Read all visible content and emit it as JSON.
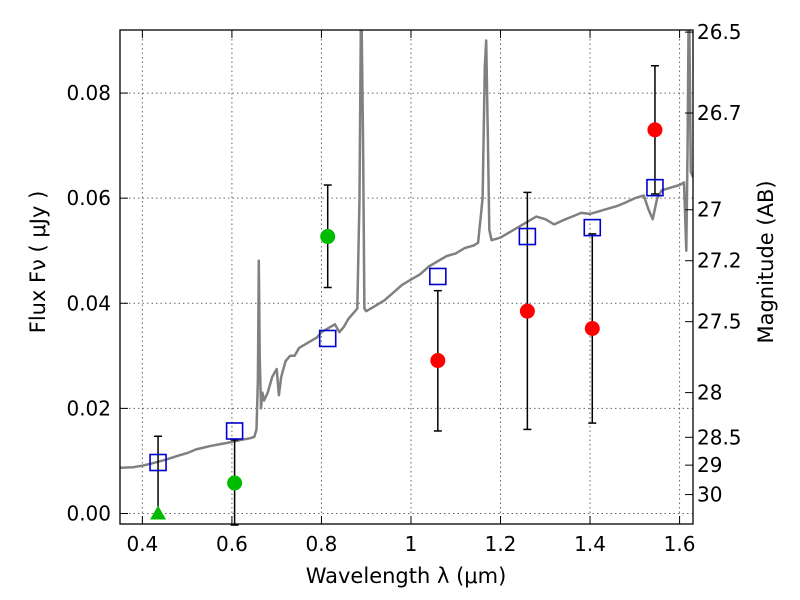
{
  "chart_data": {
    "type": "scatter",
    "xlabel": "Wavelength  λ (μm)",
    "ylabel_left": "Flux  Fν  ( μJy )",
    "ylabel_right": "Magnitude (AB)",
    "xlim": [
      0.35,
      1.63
    ],
    "ylim": [
      -0.002,
      0.092
    ],
    "grid": true,
    "x_ticks": [
      0.4,
      0.6,
      0.8,
      1.0,
      1.2,
      1.4,
      1.6
    ],
    "x_tick_labels": [
      "0.4",
      "0.6",
      "0.8",
      "1",
      "1.2",
      "1.4",
      "1.6"
    ],
    "y_ticks": [
      0.0,
      0.02,
      0.04,
      0.06,
      0.08
    ],
    "y_tick_labels": [
      "0.00",
      "0.02",
      "0.04",
      "0.06",
      "0.08"
    ],
    "right_ticks": [
      {
        "label": "26.5",
        "flux": 0.0916
      },
      {
        "label": "26.7",
        "flux": 0.0762
      },
      {
        "label": "27",
        "flux": 0.0578
      },
      {
        "label": "27.2",
        "flux": 0.0481
      },
      {
        "label": "27.5",
        "flux": 0.0365
      },
      {
        "label": "28",
        "flux": 0.023
      },
      {
        "label": "28.5",
        "flux": 0.0145
      },
      {
        "label": "29",
        "flux": 0.0092
      },
      {
        "label": "30",
        "flux": 0.0036
      }
    ],
    "colors": {
      "model": "#808080",
      "model_photometry": "#0000cc",
      "observed": "#ff0000",
      "observed_other": "#00bb00",
      "errorbar": "#000000",
      "grid": "#666666"
    },
    "model_spectrum": {
      "x": [
        0.35,
        0.38,
        0.4,
        0.42,
        0.45,
        0.48,
        0.5,
        0.52,
        0.55,
        0.58,
        0.6,
        0.62,
        0.64,
        0.65,
        0.655,
        0.658,
        0.66,
        0.662,
        0.665,
        0.668,
        0.672,
        0.68,
        0.69,
        0.7,
        0.705,
        0.71,
        0.72,
        0.73,
        0.74,
        0.75,
        0.76,
        0.77,
        0.78,
        0.79,
        0.8,
        0.81,
        0.82,
        0.83,
        0.84,
        0.85,
        0.86,
        0.87,
        0.88,
        0.885,
        0.888,
        0.89,
        0.893,
        0.896,
        0.9,
        0.92,
        0.94,
        0.96,
        0.98,
        1.0,
        1.02,
        1.04,
        1.06,
        1.08,
        1.1,
        1.12,
        1.14,
        1.15,
        1.16,
        1.165,
        1.168,
        1.172,
        1.175,
        1.18,
        1.2,
        1.22,
        1.24,
        1.26,
        1.28,
        1.3,
        1.32,
        1.34,
        1.36,
        1.38,
        1.4,
        1.42,
        1.44,
        1.46,
        1.48,
        1.5,
        1.52,
        1.53,
        1.54,
        1.55,
        1.56,
        1.58,
        1.6,
        1.61,
        1.615,
        1.618,
        1.62,
        1.622,
        1.625,
        1.63
      ],
      "y": [
        0.0087,
        0.0088,
        0.0091,
        0.0095,
        0.0102,
        0.011,
        0.0115,
        0.0122,
        0.0128,
        0.0133,
        0.0136,
        0.014,
        0.0143,
        0.0146,
        0.016,
        0.0255,
        0.0481,
        0.03,
        0.02,
        0.023,
        0.0215,
        0.023,
        0.026,
        0.0275,
        0.0225,
        0.026,
        0.029,
        0.03,
        0.03,
        0.0315,
        0.032,
        0.0325,
        0.033,
        0.0335,
        0.0345,
        0.035,
        0.0355,
        0.036,
        0.0345,
        0.0355,
        0.037,
        0.038,
        0.039,
        0.06,
        0.092,
        0.092,
        0.07,
        0.039,
        0.0385,
        0.0395,
        0.0405,
        0.042,
        0.0435,
        0.0445,
        0.0455,
        0.047,
        0.048,
        0.049,
        0.0495,
        0.0505,
        0.051,
        0.0515,
        0.06,
        0.085,
        0.09,
        0.07,
        0.054,
        0.052,
        0.0525,
        0.0535,
        0.0545,
        0.0555,
        0.0565,
        0.056,
        0.055,
        0.0558,
        0.0565,
        0.0572,
        0.057,
        0.0575,
        0.058,
        0.0585,
        0.0592,
        0.06,
        0.0605,
        0.058,
        0.056,
        0.06,
        0.0615,
        0.062,
        0.0625,
        0.063,
        0.05,
        0.07,
        0.092,
        0.092,
        0.065,
        0.064
      ]
    },
    "model_photometry": {
      "x": [
        0.435,
        0.606,
        0.814,
        1.06,
        1.26,
        1.405,
        1.545
      ],
      "y": [
        0.0097,
        0.0157,
        0.0333,
        0.0451,
        0.0527,
        0.0544,
        0.062
      ]
    },
    "observed": [
      {
        "x": 0.435,
        "y": 0.0,
        "yerr_low": 0.0,
        "yerr_high": 0.0147,
        "color": "#00bb00",
        "marker": "triangle"
      },
      {
        "x": 0.606,
        "y": 0.0058,
        "yerr_low": 0.008,
        "yerr_high": 0.0082,
        "color": "#00bb00",
        "marker": "circle"
      },
      {
        "x": 0.814,
        "y": 0.0527,
        "yerr_low": 0.0097,
        "yerr_high": 0.0098,
        "color": "#00bb00",
        "marker": "circle"
      },
      {
        "x": 1.06,
        "y": 0.0291,
        "yerr_low": 0.0134,
        "yerr_high": 0.0133,
        "color": "#ff0000",
        "marker": "circle"
      },
      {
        "x": 1.26,
        "y": 0.0385,
        "yerr_low": 0.0225,
        "yerr_high": 0.0226,
        "color": "#ff0000",
        "marker": "circle"
      },
      {
        "x": 1.405,
        "y": 0.0352,
        "yerr_low": 0.018,
        "yerr_high": 0.018,
        "color": "#ff0000",
        "marker": "circle"
      },
      {
        "x": 1.545,
        "y": 0.073,
        "yerr_low": 0.0122,
        "yerr_high": 0.0122,
        "color": "#ff0000",
        "marker": "circle"
      }
    ]
  }
}
